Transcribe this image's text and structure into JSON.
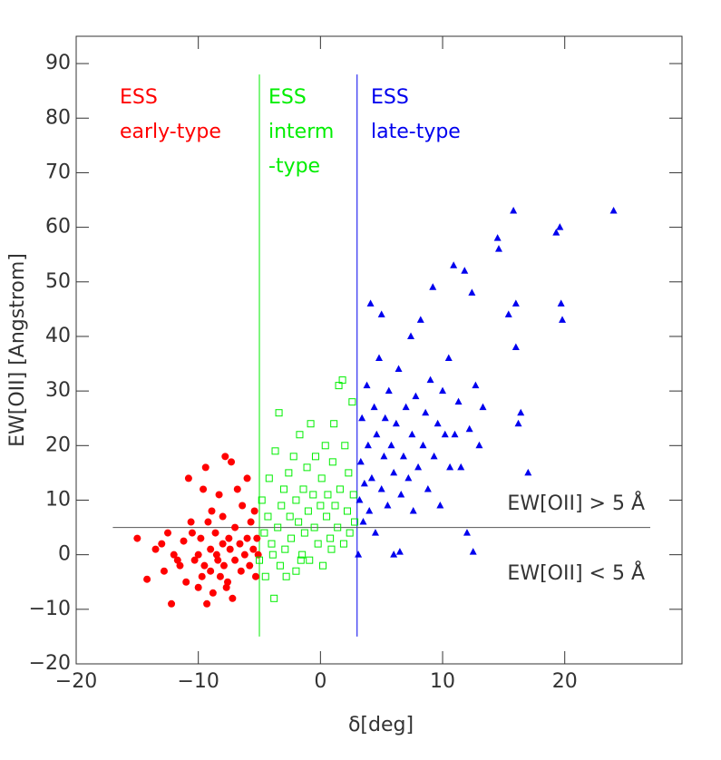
{
  "chart_data": {
    "type": "scatter",
    "xlabel": "δ[deg]",
    "ylabel": "EW[OII] [Angstrom]",
    "xlim": [
      -20,
      29.6
    ],
    "ylim": [
      -20,
      95
    ],
    "xticks": [
      {
        "value": -20,
        "label": "−20"
      },
      {
        "value": -10,
        "label": "−10"
      },
      0,
      10,
      20
    ],
    "yticks": [
      {
        "value": -20,
        "label": "−20"
      },
      {
        "value": -10,
        "label": "−10"
      },
      0,
      10,
      20,
      30,
      40,
      50,
      60,
      70,
      80,
      90
    ],
    "series": [
      {
        "color": "#ff0000",
        "marker": "circle",
        "x": [
          -15,
          -14.2,
          -13.5,
          -13,
          -12.8,
          -12.5,
          -12.2,
          -12,
          -11.5,
          -11.2,
          -11,
          -10.8,
          -10.5,
          -10.3,
          -10,
          -10,
          -9.8,
          -9.6,
          -9.5,
          -9.4,
          -9.3,
          -9.2,
          -9,
          -9,
          -8.8,
          -8.6,
          -8.5,
          -8.4,
          -8.3,
          -8.2,
          -8,
          -8,
          -7.9,
          -7.8,
          -7.6,
          -7.5,
          -7.4,
          -7.3,
          -7.2,
          -7,
          -7,
          -6.8,
          -6.6,
          -6.5,
          -6.4,
          -6.2,
          -6,
          -6,
          -5.8,
          -5.7,
          -5.5,
          -5.4,
          -5.3,
          -5.2,
          -5.1,
          -11.7,
          -10.6,
          -9.7,
          -8.9,
          -7.7
        ],
        "values": [
          3,
          -4.5,
          1,
          2,
          -3,
          4,
          -9,
          0,
          -2,
          2.5,
          -5,
          14,
          4,
          -1,
          0,
          -6,
          3,
          12,
          -2,
          16,
          -9,
          6,
          1,
          -3,
          -7,
          4,
          0,
          -1,
          11,
          -4,
          2,
          7,
          -2,
          18,
          -5,
          3,
          1,
          17,
          -8,
          5,
          -1,
          12,
          2,
          -3,
          9,
          0,
          3,
          14,
          -2,
          6,
          1,
          8,
          -4,
          3,
          0,
          -1,
          6,
          -4,
          8,
          -6
        ]
      },
      {
        "color": "#00ee00",
        "marker": "square",
        "x": [
          -5,
          -4.8,
          -4.6,
          -4.5,
          -4.3,
          -4.2,
          -4,
          -3.8,
          -3.7,
          -3.5,
          -3.4,
          -3.3,
          -3.2,
          -3,
          -2.9,
          -2.8,
          -2.6,
          -2.5,
          -2.4,
          -2.2,
          -2,
          -2,
          -1.8,
          -1.7,
          -1.5,
          -1.4,
          -1.3,
          -1.1,
          -1,
          -0.9,
          -0.8,
          -0.6,
          -0.5,
          -0.4,
          -0.2,
          0,
          0.1,
          0.2,
          0.4,
          0.5,
          0.6,
          0.8,
          1,
          1.1,
          1.2,
          1.4,
          1.5,
          1.6,
          1.8,
          1.9,
          2,
          2.2,
          2.3,
          2.4,
          2.6,
          2.7,
          2.8,
          -3.9,
          -1.6,
          0.9
        ],
        "values": [
          -1,
          10,
          4,
          -4,
          7,
          14,
          2,
          -8,
          19,
          5,
          26,
          -2,
          9,
          12,
          1,
          -4,
          15,
          7,
          3,
          18,
          10,
          -3,
          6,
          22,
          0,
          12,
          4,
          16,
          8,
          -1,
          24,
          11,
          5,
          18,
          2,
          9,
          14,
          -2,
          20,
          7,
          11,
          3,
          17,
          24,
          9,
          5,
          31,
          12,
          32,
          2,
          20,
          8,
          15,
          4,
          28,
          11,
          6,
          0,
          -1,
          1
        ]
      },
      {
        "color": "#0000ee",
        "marker": "triangle",
        "x": [
          3.1,
          3.2,
          3.3,
          3.4,
          3.5,
          3.6,
          3.8,
          3.9,
          4,
          4.1,
          4.2,
          4.4,
          4.5,
          4.6,
          4.8,
          5,
          5,
          5.2,
          5.3,
          5.5,
          5.6,
          5.8,
          6,
          6,
          6.2,
          6.4,
          6.5,
          6.6,
          6.8,
          7,
          7.2,
          7.4,
          7.5,
          7.6,
          7.8,
          8,
          8.2,
          8.4,
          8.6,
          8.8,
          9,
          9.2,
          9.3,
          9.6,
          9.8,
          10,
          10.2,
          10.5,
          10.6,
          10.9,
          11,
          11.3,
          11.5,
          11.8,
          12,
          12.2,
          12.4,
          12.5,
          12.7,
          13,
          13.3,
          14.5,
          14.6,
          15.4,
          15.8,
          16,
          16,
          16.2,
          16.4,
          17,
          19.3,
          19.6,
          19.7,
          19.8,
          24
        ],
        "values": [
          0,
          10,
          17,
          25,
          6,
          13,
          31,
          20,
          8,
          46,
          14,
          27,
          4,
          22,
          36,
          12,
          44,
          18,
          25,
          9,
          30,
          20,
          0,
          15,
          24,
          34,
          0.5,
          11,
          18,
          27,
          14,
          40,
          22,
          8,
          29,
          16,
          43,
          20,
          26,
          12,
          32,
          49,
          18,
          24,
          9,
          30,
          22,
          36,
          16,
          53,
          22,
          28,
          16,
          52,
          4,
          23,
          48,
          0.5,
          31,
          20,
          27,
          58,
          56,
          44,
          63,
          38,
          46,
          24,
          26,
          15,
          59,
          60,
          46,
          43,
          63
        ]
      }
    ],
    "dividers": [
      {
        "x": -5,
        "y": [
          -15,
          88
        ],
        "color": "#00ee00"
      },
      {
        "x": 3,
        "y": [
          -15,
          88
        ],
        "color": "#0000ee"
      }
    ],
    "threshold": {
      "y": 5,
      "x": [
        -17,
        27
      ],
      "color": "#555555"
    },
    "annotations": [
      {
        "lines": [
          "ESS",
          "early-type"
        ],
        "color": "#ff0000"
      },
      {
        "lines": [
          "ESS",
          "interm",
          "-type"
        ],
        "color": "#00ee00"
      },
      {
        "lines": [
          "ESS",
          "late-type"
        ],
        "color": "#0000ee"
      },
      {
        "lines": [
          "EW[OII] > 5 Å"
        ],
        "color": "#333333"
      },
      {
        "lines": [
          "EW[OII] < 5 Å"
        ],
        "color": "#333333"
      }
    ]
  }
}
